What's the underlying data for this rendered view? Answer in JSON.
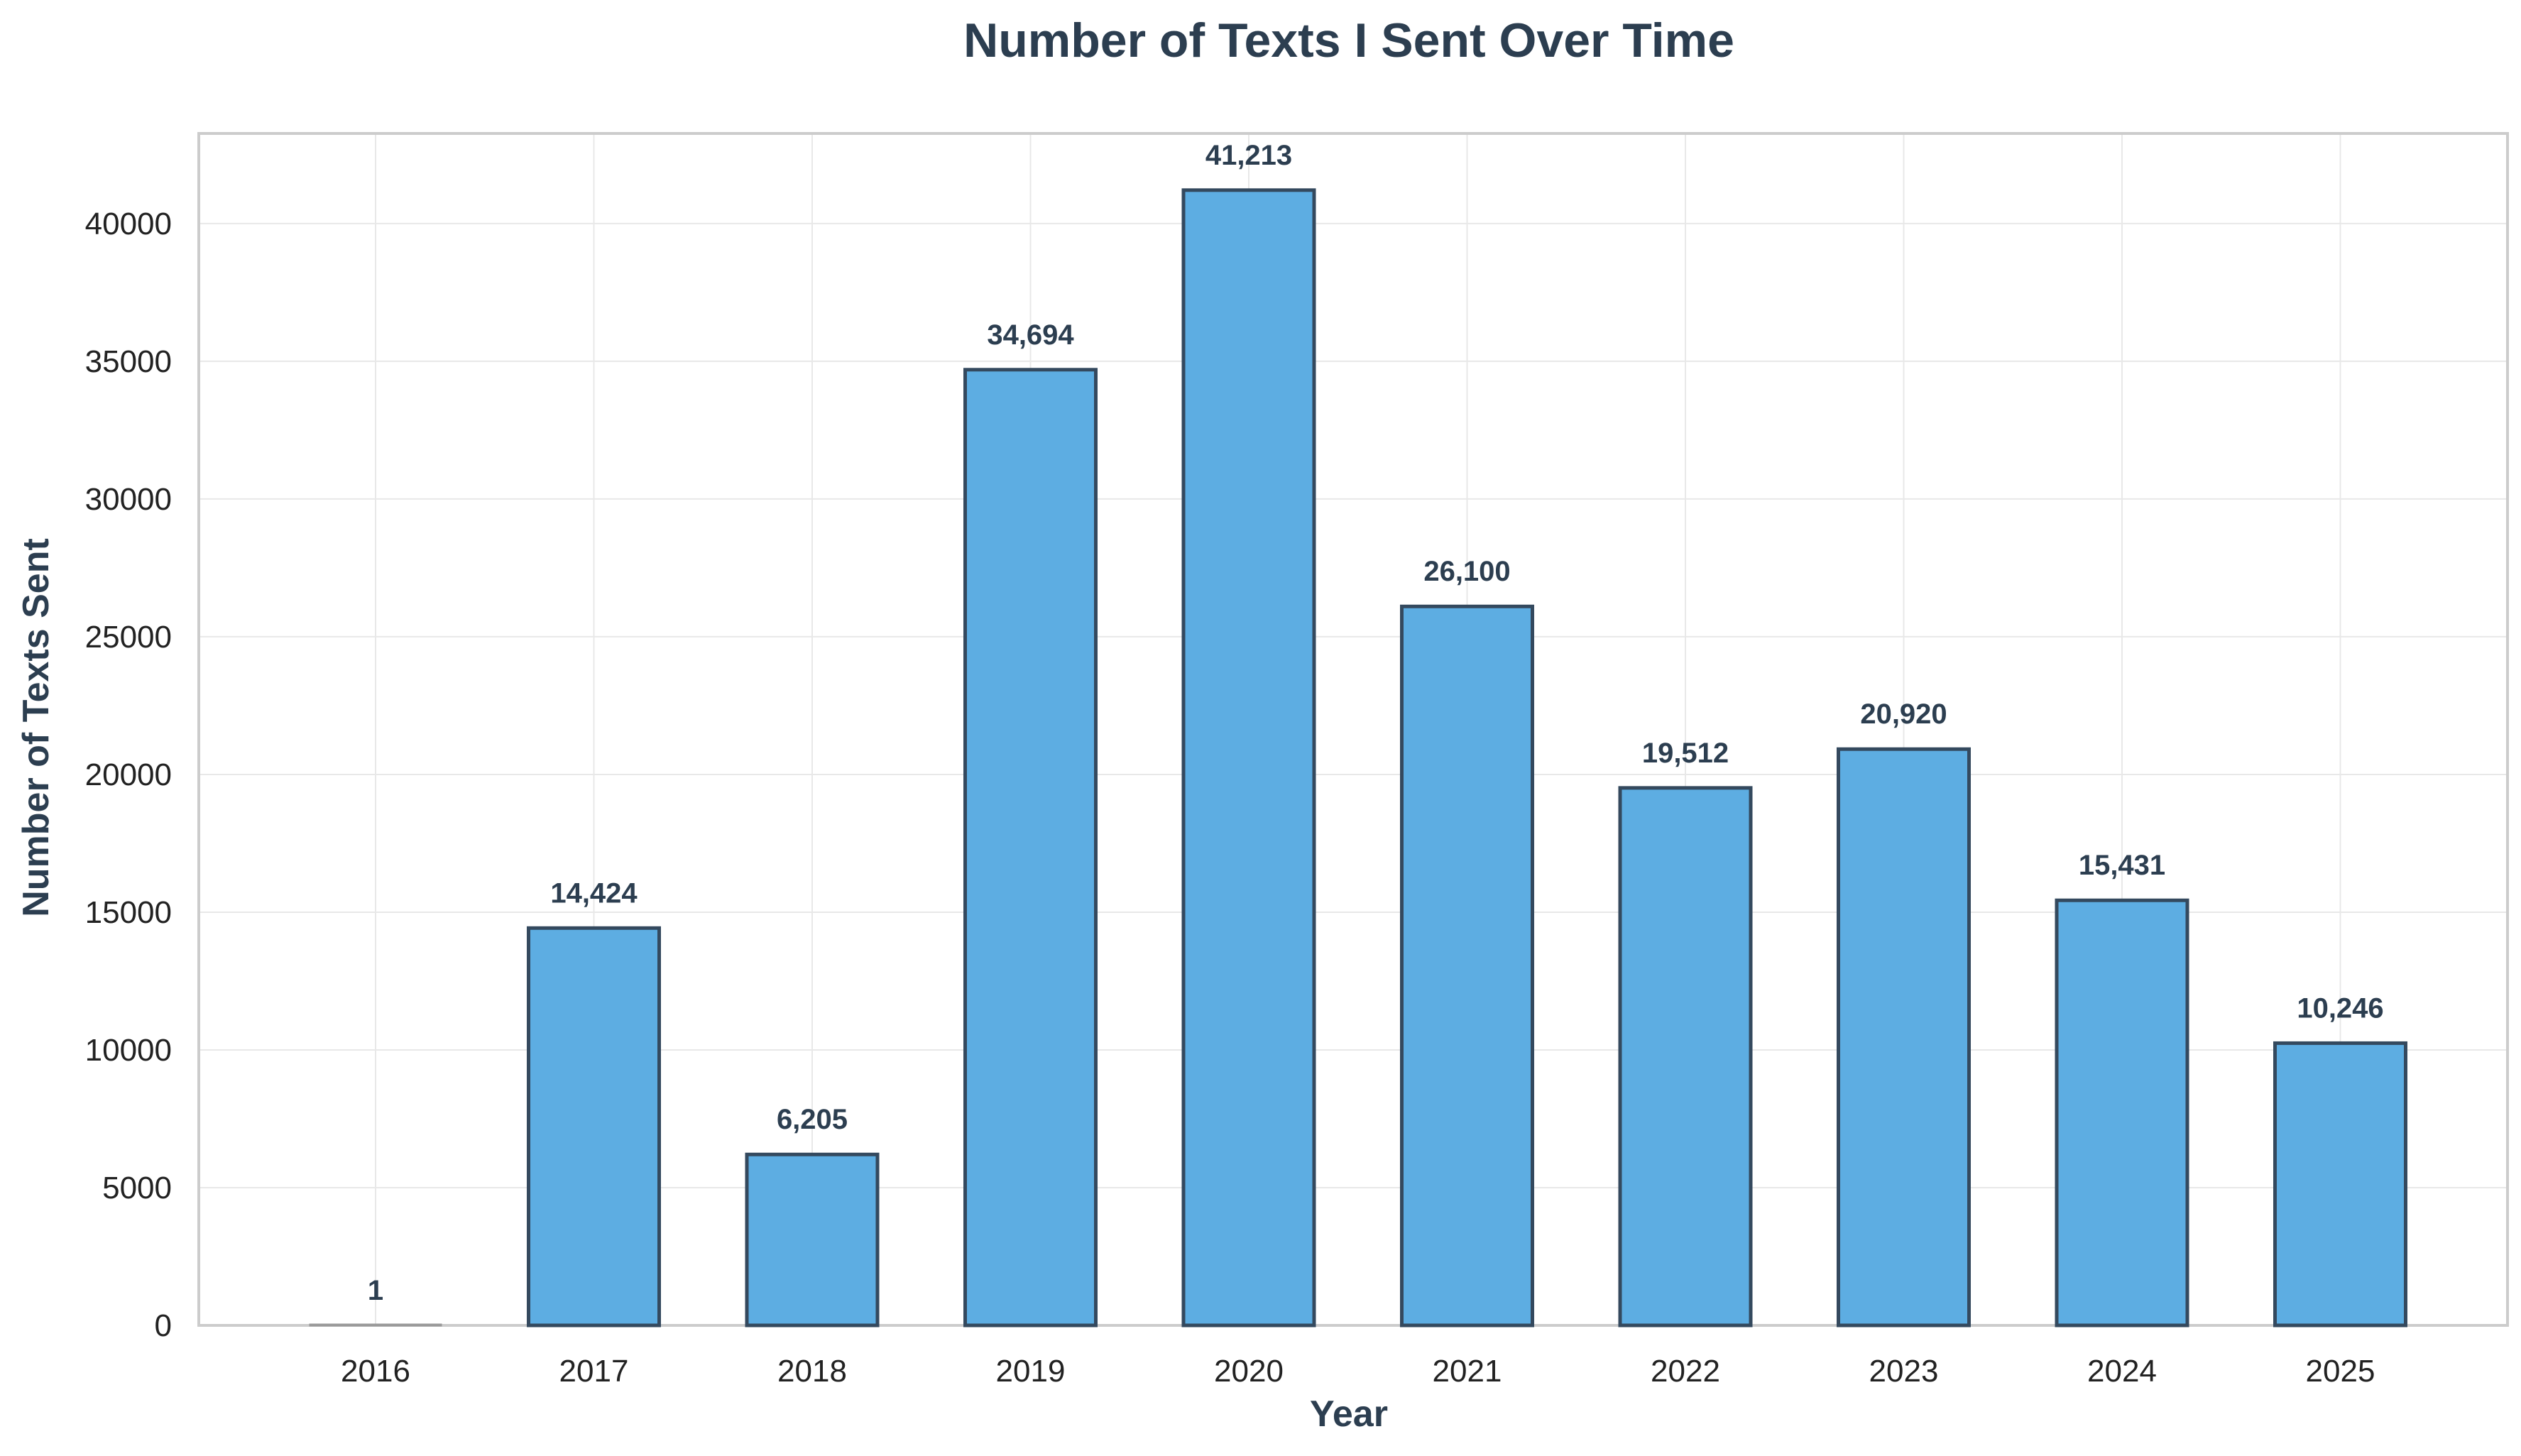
{
  "chart_data": {
    "type": "bar",
    "title": "Number of Texts I Sent Over Time",
    "xlabel": "Year",
    "ylabel": "Number of Texts Sent",
    "categories": [
      "2016",
      "2017",
      "2018",
      "2019",
      "2020",
      "2021",
      "2022",
      "2023",
      "2024",
      "2025"
    ],
    "values": [
      1,
      14424,
      6205,
      34694,
      41213,
      26100,
      19512,
      20920,
      15431,
      10246
    ],
    "data_labels": [
      "1",
      "14,424",
      "6,205",
      "34,694",
      "41,213",
      "26,100",
      "19,512",
      "20,920",
      "15,431",
      "10,246"
    ],
    "ylim": [
      0,
      43270
    ],
    "yticks": [
      0,
      5000,
      10000,
      15000,
      20000,
      25000,
      30000,
      35000,
      40000
    ],
    "ytick_labels": [
      "0",
      "5000",
      "10000",
      "15000",
      "20000",
      "25000",
      "30000",
      "35000",
      "40000"
    ],
    "grid": true,
    "legend": "none",
    "colors": {
      "bar_fill": "#5dade2",
      "bar_edge": "#34495e",
      "text": "#2c3e50",
      "grid": "#e8e8e8",
      "frame": "#cccccc"
    }
  }
}
